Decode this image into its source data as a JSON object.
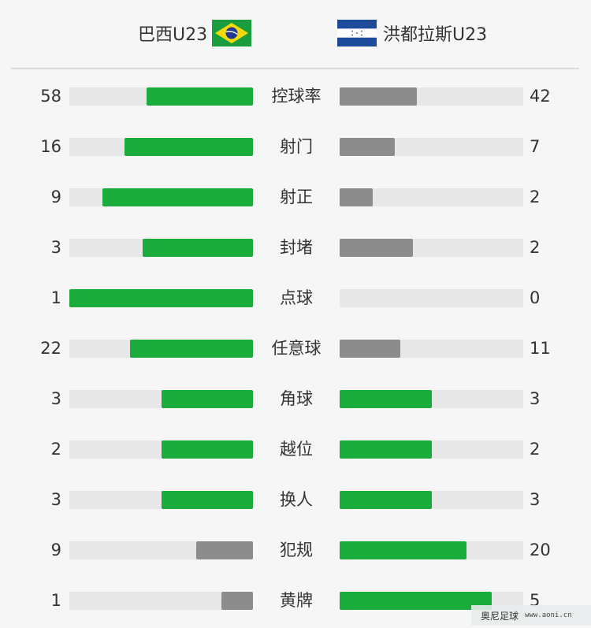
{
  "header": {
    "home_team": "巴西U23",
    "away_team": "洪都拉斯U23",
    "home_flag_icon": "brazil-flag-icon",
    "away_flag_icon": "honduras-flag-icon"
  },
  "colors": {
    "winner": "#1aab3c",
    "loser": "#8c8c8c",
    "track": "#e7e7e7"
  },
  "stats": [
    {
      "label": "控球率",
      "home": "58",
      "away": "42",
      "home_frac": 0.58,
      "away_frac": 0.42,
      "home_color": "green",
      "away_color": "gray"
    },
    {
      "label": "射门",
      "home": "16",
      "away": "7",
      "home_frac": 0.7,
      "away_frac": 0.3,
      "home_color": "green",
      "away_color": "gray"
    },
    {
      "label": "射正",
      "home": "9",
      "away": "2",
      "home_frac": 0.82,
      "away_frac": 0.18,
      "home_color": "green",
      "away_color": "gray"
    },
    {
      "label": "封堵",
      "home": "3",
      "away": "2",
      "home_frac": 0.6,
      "away_frac": 0.4,
      "home_color": "green",
      "away_color": "gray"
    },
    {
      "label": "点球",
      "home": "1",
      "away": "0",
      "home_frac": 1.0,
      "away_frac": 0.0,
      "home_color": "green",
      "away_color": "gray"
    },
    {
      "label": "任意球",
      "home": "22",
      "away": "11",
      "home_frac": 0.67,
      "away_frac": 0.33,
      "home_color": "green",
      "away_color": "gray"
    },
    {
      "label": "角球",
      "home": "3",
      "away": "3",
      "home_frac": 0.5,
      "away_frac": 0.5,
      "home_color": "green",
      "away_color": "green"
    },
    {
      "label": "越位",
      "home": "2",
      "away": "2",
      "home_frac": 0.5,
      "away_frac": 0.5,
      "home_color": "green",
      "away_color": "green"
    },
    {
      "label": "换人",
      "home": "3",
      "away": "3",
      "home_frac": 0.5,
      "away_frac": 0.5,
      "home_color": "green",
      "away_color": "green"
    },
    {
      "label": "犯规",
      "home": "9",
      "away": "20",
      "home_frac": 0.31,
      "away_frac": 0.69,
      "home_color": "gray",
      "away_color": "green"
    },
    {
      "label": "黄牌",
      "home": "1",
      "away": "5",
      "home_frac": 0.17,
      "away_frac": 0.83,
      "home_color": "gray",
      "away_color": "green"
    }
  ],
  "watermark": {
    "text": "奥尼足球",
    "url": "www.aoni.cn"
  }
}
